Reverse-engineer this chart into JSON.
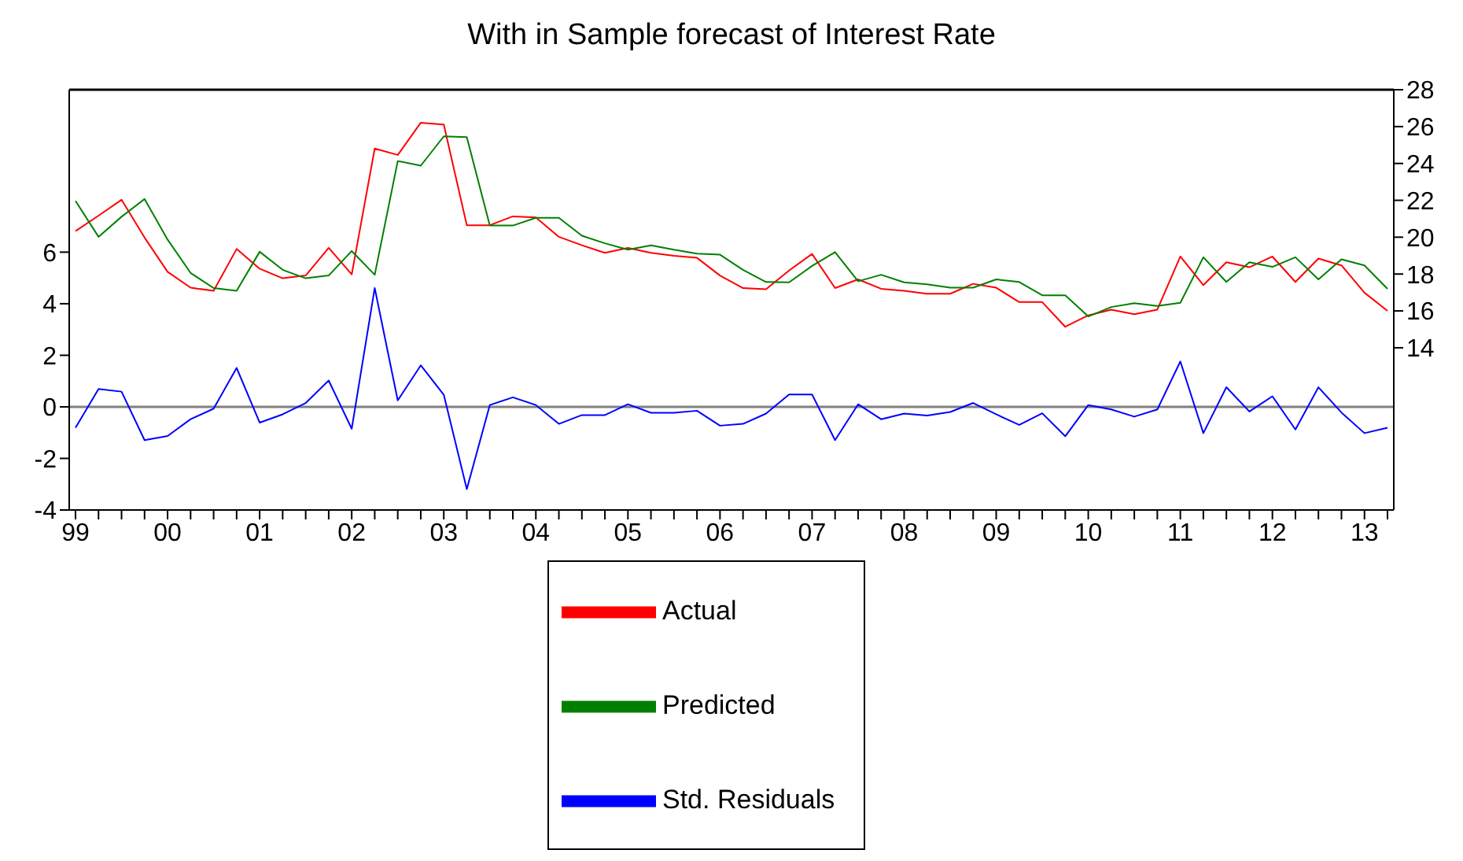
{
  "chart_data": {
    "type": "line",
    "title": "With in Sample forecast of Interest Rate",
    "categories": [
      "99",
      null,
      null,
      null,
      "00",
      null,
      null,
      null,
      "01",
      null,
      null,
      null,
      "02",
      null,
      null,
      null,
      "03",
      null,
      null,
      null,
      "04",
      null,
      null,
      null,
      "05",
      null,
      null,
      null,
      "06",
      null,
      null,
      null,
      "07",
      null,
      null,
      null,
      "08",
      null,
      null,
      null,
      "09",
      null,
      null,
      null,
      "10",
      null,
      null,
      null,
      "11",
      null,
      null,
      null,
      "12",
      null,
      null,
      null,
      "13",
      null
    ],
    "series": [
      {
        "name": "Std. Residuals",
        "color": "#0000ff",
        "axis": "y",
        "values": [
          -0.81,
          0.69,
          0.59,
          -1.29,
          -1.13,
          -0.48,
          -0.07,
          1.51,
          -0.61,
          -0.29,
          0.15,
          1.02,
          -0.85,
          4.61,
          0.25,
          1.61,
          0.47,
          -3.19,
          0.07,
          0.37,
          0.07,
          -0.66,
          -0.32,
          -0.32,
          0.1,
          -0.23,
          -0.23,
          -0.15,
          -0.73,
          -0.66,
          -0.26,
          0.48,
          0.48,
          -1.29,
          0.1,
          -0.48,
          -0.26,
          -0.34,
          -0.2,
          0.15,
          -0.29,
          -0.7,
          -0.25,
          -1.14,
          0.07,
          -0.1,
          -0.38,
          -0.1,
          1.76,
          -1.02,
          0.76,
          -0.18,
          0.41,
          -0.88,
          0.76,
          -0.22,
          -1.02,
          -0.81
        ]
      },
      {
        "name": "Actual",
        "color": "#ff0000",
        "axis": "y2",
        "values": [
          20.33,
          21.17,
          22.03,
          19.98,
          18.12,
          17.26,
          17.09,
          19.36,
          18.29,
          17.77,
          17.92,
          19.42,
          17.98,
          24.81,
          24.46,
          26.21,
          26.11,
          20.65,
          20.65,
          21.13,
          21.07,
          20.02,
          19.56,
          19.15,
          19.42,
          19.15,
          18.99,
          18.88,
          17.92,
          17.24,
          17.18,
          18.19,
          19.09,
          17.24,
          17.71,
          17.2,
          17.09,
          16.93,
          16.93,
          17.47,
          17.26,
          16.48,
          16.48,
          15.14,
          15.76,
          16.07,
          15.82,
          16.07,
          18.95,
          17.4,
          18.64,
          18.37,
          18.95,
          17.57,
          18.84,
          18.47,
          16.99,
          16.0
        ]
      },
      {
        "name": "Predicted",
        "color": "#008000",
        "axis": "y2",
        "values": [
          21.97,
          20.02,
          21.11,
          22.07,
          19.87,
          18.06,
          17.24,
          17.09,
          19.21,
          18.23,
          17.77,
          17.92,
          19.25,
          17.96,
          24.13,
          23.88,
          25.47,
          25.43,
          20.63,
          20.63,
          21.05,
          21.05,
          20.08,
          19.67,
          19.32,
          19.56,
          19.32,
          19.11,
          19.05,
          18.23,
          17.57,
          17.55,
          18.44,
          19.19,
          17.61,
          17.96,
          17.55,
          17.44,
          17.26,
          17.26,
          17.71,
          17.57,
          16.85,
          16.85,
          15.7,
          16.21,
          16.42,
          16.27,
          16.44,
          18.91,
          17.57,
          18.64,
          18.39,
          18.91,
          17.71,
          18.8,
          18.47,
          17.2
        ]
      }
    ],
    "ylim": [
      -4,
      12.3
    ],
    "yticks": [
      -4,
      -2,
      0,
      2,
      4,
      6
    ],
    "y2lim": [
      5.2,
      28
    ],
    "y2ticks": [
      14,
      16,
      18,
      20,
      22,
      24,
      26,
      28
    ],
    "ref_lines": [
      {
        "axis": "y",
        "value": 0,
        "color": "#808080"
      }
    ],
    "grid": false,
    "legend": "bottom",
    "marker": "none",
    "line_style": "solid"
  }
}
